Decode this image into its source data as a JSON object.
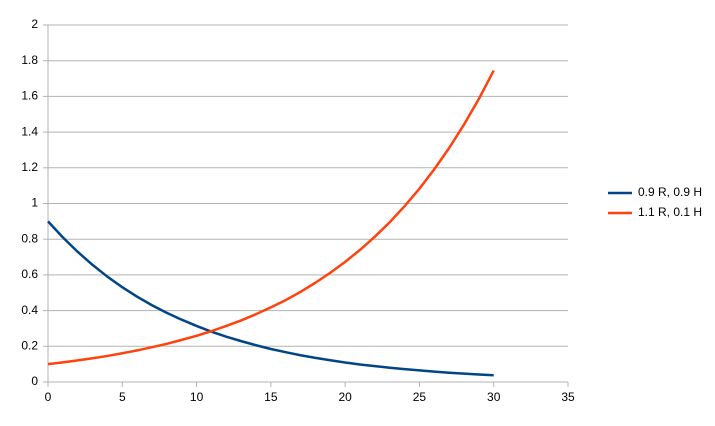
{
  "chart_data": {
    "type": "line",
    "x": [
      0,
      1,
      2,
      3,
      4,
      5,
      6,
      7,
      8,
      9,
      10,
      11,
      12,
      13,
      14,
      15,
      16,
      17,
      18,
      19,
      20,
      21,
      22,
      23,
      24,
      25,
      26,
      27,
      28,
      29,
      30
    ],
    "series": [
      {
        "name": "0.9 R, 0.9 H",
        "color": "#004586",
        "values": [
          0.9,
          0.81,
          0.729,
          0.656,
          0.59,
          0.531,
          0.478,
          0.43,
          0.387,
          0.349,
          0.314,
          0.282,
          0.254,
          0.229,
          0.206,
          0.185,
          0.167,
          0.15,
          0.135,
          0.122,
          0.109,
          0.098,
          0.089,
          0.08,
          0.072,
          0.065,
          0.058,
          0.052,
          0.047,
          0.042,
          0.038
        ]
      },
      {
        "name": "1.1 R, 0.1 H",
        "color": "#ff420e",
        "values": [
          0.1,
          0.11,
          0.121,
          0.133,
          0.146,
          0.161,
          0.177,
          0.195,
          0.214,
          0.236,
          0.259,
          0.285,
          0.314,
          0.345,
          0.38,
          0.418,
          0.459,
          0.505,
          0.556,
          0.612,
          0.673,
          0.74,
          0.814,
          0.895,
          0.985,
          1.083,
          1.192,
          1.311,
          1.442,
          1.586,
          1.745
        ]
      }
    ],
    "xlim": [
      0,
      35
    ],
    "xticks": [
      0,
      5,
      10,
      15,
      20,
      25,
      30,
      35
    ],
    "ylim": [
      0,
      2
    ],
    "yticks": [
      0,
      0.2,
      0.4,
      0.6,
      0.8,
      1,
      1.2,
      1.4,
      1.6,
      1.8,
      2
    ],
    "grid": true,
    "legend": "right"
  }
}
